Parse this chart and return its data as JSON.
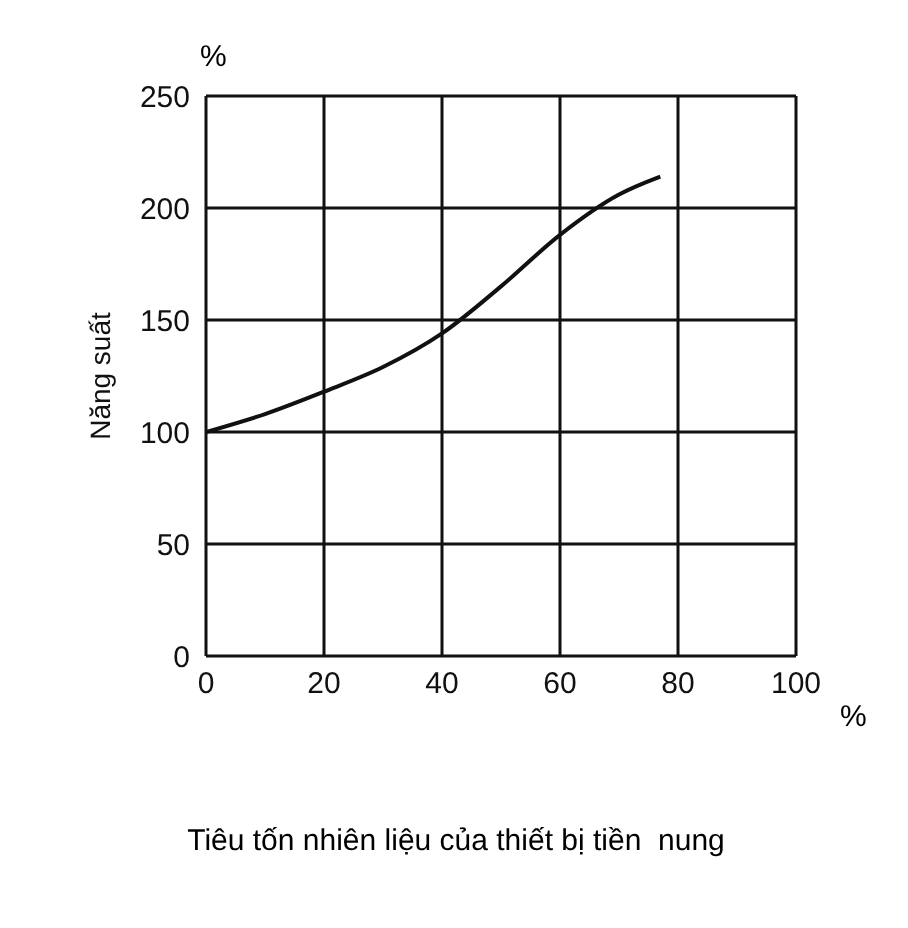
{
  "chart_data": {
    "type": "line",
    "xlabel": "Tiêu tốn nhiên liệu của thiết bị tiền  nung",
    "ylabel": "Năng suất",
    "annotations": [
      "%",
      "%"
    ],
    "x": [
      0,
      10,
      20,
      30,
      40,
      50,
      60,
      70,
      77
    ],
    "series": [
      {
        "color": "#111111",
        "values": [
          100,
          108,
          118,
          129,
          144,
          165,
          188,
          206,
          214
        ]
      }
    ],
    "xlim": [
      0,
      100
    ],
    "xticks": [
      0,
      20,
      40,
      60,
      80,
      100
    ],
    "ylim": [
      0,
      250
    ],
    "yticks": [
      0,
      50,
      100,
      150,
      200,
      250
    ],
    "grid": true,
    "marker": "none",
    "line_style": "solid"
  }
}
